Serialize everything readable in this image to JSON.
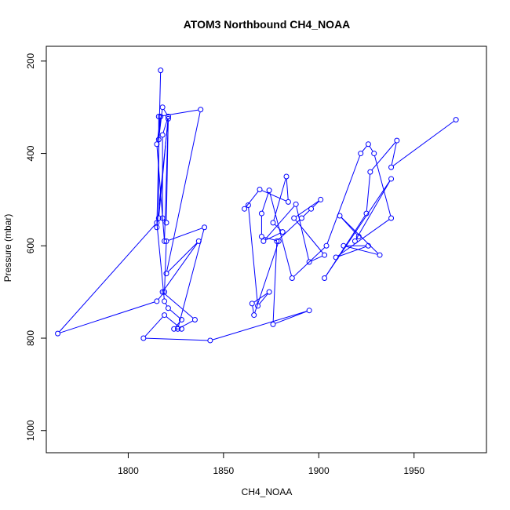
{
  "chart_data": {
    "type": "line",
    "title": "ATOM3 Northbound CH4_NOAA",
    "xlabel": "CH4_NOAA",
    "ylabel": "Pressure (mbar)",
    "xlim": [
      1757,
      1988
    ],
    "ylim": [
      1048,
      168
    ],
    "y_reversed": true,
    "x_ticks": [
      1800,
      1850,
      1900,
      1950
    ],
    "y_ticks": [
      200,
      400,
      600,
      800,
      1000
    ],
    "grid": false,
    "series": [
      {
        "color": "#0000ff",
        "marker": "open-circle",
        "x": [
          1972,
          1938,
          1941,
          1927,
          1925,
          1903,
          1938,
          1919,
          1921,
          1911,
          1932,
          1913,
          1926,
          1909,
          1938,
          1929,
          1926,
          1922,
          1904,
          1886,
          1874,
          1870,
          1870,
          1879,
          1866,
          1865,
          1874,
          1868,
          1863,
          1861,
          1869,
          1884,
          1883,
          1876,
          1881,
          1871,
          1888,
          1895,
          1903,
          1887,
          1901,
          1896,
          1891,
          1878,
          1876,
          1895,
          1843,
          1808,
          1819,
          1828,
          1824,
          1828,
          1821,
          1819,
          1815,
          1763,
          1815,
          1819,
          1820,
          1840,
          1826,
          1835,
          1818,
          1837,
          1820,
          1838,
          1816,
          1816,
          1821,
          1818,
          1818,
          1820,
          1821,
          1818,
          1816,
          1817,
          1815,
          1819,
          1821,
          1815,
          1817
        ],
        "y": [
          327,
          430,
          372,
          440,
          530,
          670,
          455,
          590,
          580,
          535,
          620,
          600,
          600,
          625,
          540,
          400,
          380,
          400,
          600,
          670,
          480,
          530,
          580,
          590,
          750,
          725,
          700,
          730,
          512,
          520,
          478,
          505,
          450,
          550,
          570,
          590,
          510,
          635,
          620,
          540,
          500,
          520,
          540,
          590,
          770,
          740,
          805,
          800,
          750,
          780,
          780,
          760,
          735,
          720,
          550,
          790,
          720,
          700,
          590,
          560,
          780,
          760,
          700,
          590,
          660,
          305,
          320,
          540,
          320,
          360,
          540,
          550,
          320,
          300,
          370,
          320,
          380,
          590,
          325,
          560,
          220
        ]
      }
    ]
  }
}
